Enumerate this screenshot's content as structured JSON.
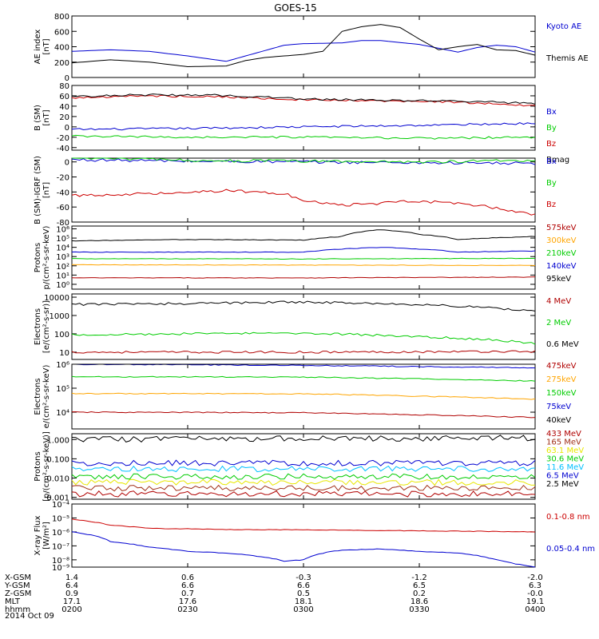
{
  "title": "GOES-15",
  "date_label": "2014 Oct 09",
  "colors": {
    "black": "#000000",
    "blue": "#0000d0",
    "red": "#cc0000",
    "green": "#00cc00",
    "orange": "#ffa500",
    "cyan": "#00c0ff",
    "yellow": "#e8e800",
    "brown": "#a03018",
    "darkred": "#b00000",
    "magenta": "#d000d0"
  },
  "bottom_axis": {
    "rows": [
      {
        "label": "X-GSM",
        "values": [
          "1.4",
          "0.6",
          "-0.3",
          "-1.2",
          "-2.0"
        ]
      },
      {
        "label": "Y-GSM",
        "values": [
          "6.4",
          "6.6",
          "6.6",
          "6.5",
          "6.3"
        ]
      },
      {
        "label": "Z-GSM",
        "values": [
          "0.9",
          "0.7",
          "0.5",
          "0.2",
          "-0.0"
        ]
      },
      {
        "label": "MLT",
        "values": [
          "17.1",
          "17.6",
          "18.1",
          "18.6",
          "19.1"
        ]
      },
      {
        "label": "hhmm",
        "values": [
          "0200",
          "0230",
          "0300",
          "0330",
          "0400"
        ]
      }
    ]
  },
  "chart_data": [
    {
      "type": "line",
      "panel": "ae",
      "ylabel": [
        "AE index",
        "[nT]"
      ],
      "scale": "linear",
      "ylim": [
        0,
        800
      ],
      "yticks": [
        "0",
        "200",
        "400",
        "600",
        "800"
      ],
      "yticks_v": [
        0,
        200,
        400,
        600,
        800
      ],
      "xlim": [
        0,
        120
      ],
      "series": [
        {
          "name": "Kyoto AE",
          "color": "blue",
          "x": [
            0,
            10,
            20,
            30,
            40,
            50,
            55,
            60,
            70,
            75,
            80,
            90,
            100,
            105,
            110,
            115,
            120
          ],
          "y": [
            340,
            360,
            340,
            280,
            210,
            350,
            420,
            440,
            450,
            480,
            480,
            430,
            330,
            390,
            420,
            400,
            330
          ]
        },
        {
          "name": "Themis AE",
          "color": "black",
          "x": [
            0,
            10,
            20,
            30,
            40,
            45,
            50,
            60,
            65,
            70,
            75,
            80,
            85,
            90,
            95,
            100,
            105,
            110,
            115,
            120
          ],
          "y": [
            190,
            230,
            200,
            140,
            150,
            220,
            260,
            300,
            340,
            600,
            660,
            690,
            650,
            500,
            360,
            400,
            430,
            360,
            350,
            290
          ]
        }
      ]
    },
    {
      "type": "line",
      "panel": "bsm",
      "ylabel": [
        "B (SM)",
        "[nT]"
      ],
      "scale": "linear",
      "ylim": [
        -45,
        80
      ],
      "yticks": [
        "-40",
        "-20",
        "0",
        "20",
        "40",
        "60",
        "80"
      ],
      "yticks_v": [
        -40,
        -20,
        0,
        20,
        40,
        60,
        80
      ],
      "xlim": [
        0,
        120
      ],
      "noise": 2,
      "series": [
        {
          "name": "Bx",
          "color": "blue",
          "x": [
            0,
            30,
            60,
            90,
            120
          ],
          "y": [
            -5,
            -3,
            0,
            3,
            7
          ]
        },
        {
          "name": "By",
          "color": "green",
          "x": [
            0,
            30,
            60,
            90,
            120
          ],
          "y": [
            -18,
            -20,
            -20,
            -22,
            -20
          ]
        },
        {
          "name": "Bz",
          "color": "red",
          "x": [
            0,
            20,
            40,
            60,
            80,
            100,
            120
          ],
          "y": [
            56,
            60,
            58,
            52,
            50,
            48,
            40
          ]
        },
        {
          "name": "Bmag",
          "color": "black",
          "x": [
            0,
            20,
            40,
            60,
            80,
            100,
            120
          ],
          "y": [
            59,
            62,
            61,
            54,
            51,
            50,
            45
          ]
        }
      ]
    },
    {
      "type": "line",
      "panel": "bigrf",
      "ylabel": [
        "B (SM)-IGRF (SM)",
        "[nT]"
      ],
      "scale": "linear",
      "ylim": [
        -80,
        5
      ],
      "yticks": [
        "-80",
        "-60",
        "-40",
        "-20",
        "0"
      ],
      "yticks_v": [
        -80,
        -60,
        -40,
        -20,
        0
      ],
      "xlim": [
        0,
        120
      ],
      "noise": 2,
      "series": [
        {
          "name": "Bx",
          "color": "blue",
          "x": [
            0,
            30,
            60,
            90,
            120
          ],
          "y": [
            3,
            1,
            0,
            -1,
            -2
          ]
        },
        {
          "name": "By",
          "color": "green",
          "x": [
            0,
            30,
            60,
            90,
            120
          ],
          "y": [
            6,
            2,
            1,
            0,
            2
          ]
        },
        {
          "name": "Bz",
          "color": "red",
          "x": [
            0,
            20,
            40,
            55,
            60,
            70,
            90,
            105,
            120
          ],
          "y": [
            -45,
            -42,
            -38,
            -42,
            -52,
            -58,
            -52,
            -58,
            -70
          ]
        }
      ]
    },
    {
      "type": "line",
      "panel": "protons_low",
      "ylabel": [
        "Protons",
        "p/(cm²-s-sr-keV)"
      ],
      "scale": "log",
      "ylim": [
        0.3,
        2000000
      ],
      "yticks": [
        "10⁰",
        "10¹",
        "10²",
        "10³",
        "10⁴",
        "10⁵",
        "10⁶"
      ],
      "yticks_v": [
        1,
        10,
        100,
        1000,
        10000,
        100000,
        1000000
      ],
      "xlim": [
        0,
        120
      ],
      "noise": 0.03,
      "series": [
        {
          "name": "575keV",
          "color": "darkred",
          "x": [
            0,
            60,
            120
          ],
          "y": [
            5,
            5,
            6
          ]
        },
        {
          "name": "300keV",
          "color": "orange",
          "x": [
            0,
            60,
            120
          ],
          "y": [
            130,
            120,
            110
          ]
        },
        {
          "name": "210keV",
          "color": "green",
          "x": [
            0,
            60,
            120
          ],
          "y": [
            600,
            550,
            650
          ]
        },
        {
          "name": "140keV",
          "color": "blue",
          "x": [
            0,
            60,
            80,
            100,
            120
          ],
          "y": [
            3000,
            3000,
            10000,
            3000,
            4000
          ]
        },
        {
          "name": "95keV",
          "color": "black",
          "x": [
            0,
            30,
            60,
            70,
            80,
            90,
            100,
            120
          ],
          "y": [
            50000,
            70000,
            60000,
            150000,
            800000,
            250000,
            70000,
            150000
          ]
        }
      ]
    },
    {
      "type": "line",
      "panel": "electrons_high",
      "ylabel": [
        "Electrons",
        "[e/(cm²-s-sr)]"
      ],
      "scale": "log",
      "ylim": [
        4,
        15000
      ],
      "yticks": [
        "10",
        "100",
        "1000",
        "10000"
      ],
      "yticks_v": [
        10,
        100,
        1000,
        10000
      ],
      "xlim": [
        0,
        120
      ],
      "noise": 0.06,
      "series": [
        {
          "name": "4 MeV",
          "color": "darkred",
          "x": [
            0,
            60,
            120
          ],
          "y": [
            10,
            10,
            11
          ]
        },
        {
          "name": "2 MeV",
          "color": "green",
          "x": [
            0,
            30,
            60,
            90,
            110,
            120
          ],
          "y": [
            90,
            100,
            110,
            70,
            45,
            30
          ]
        },
        {
          "name": "0.6 MeV",
          "color": "black",
          "x": [
            0,
            30,
            60,
            90,
            110,
            120
          ],
          "y": [
            4000,
            4500,
            5500,
            4000,
            2500,
            1800
          ]
        }
      ]
    },
    {
      "type": "line",
      "panel": "electrons_low",
      "ylabel": [
        "Electrons",
        "e/(cm²-s-sr-keV)"
      ],
      "scale": "log",
      "ylim": [
        2000,
        1000000
      ],
      "yticks": [
        "10⁴",
        "10⁵",
        "10⁶"
      ],
      "yticks_v": [
        10000,
        100000,
        1000000
      ],
      "xlim": [
        0,
        120
      ],
      "noise": 0.02,
      "series": [
        {
          "name": "475keV",
          "color": "darkred",
          "x": [
            0,
            60,
            120
          ],
          "y": [
            10000,
            9500,
            6000
          ]
        },
        {
          "name": "275keV",
          "color": "orange",
          "x": [
            0,
            60,
            120
          ],
          "y": [
            60000,
            58000,
            35000
          ]
        },
        {
          "name": "150keV",
          "color": "green",
          "x": [
            0,
            60,
            120
          ],
          "y": [
            300000,
            290000,
            200000
          ]
        },
        {
          "name": "75keV",
          "color": "blue",
          "x": [
            0,
            60,
            120
          ],
          "y": [
            1000000,
            900000,
            700000
          ]
        },
        {
          "name": "40keV",
          "color": "black",
          "x": [
            0,
            60,
            120
          ],
          "y": [
            1500000,
            1400000,
            1200000
          ]
        }
      ]
    },
    {
      "type": "line",
      "panel": "protons_high",
      "ylabel": [
        "Protons",
        "[p/(cm²-s-sr-keV)]"
      ],
      "scale": "log",
      "ylim": [
        0.0008,
        2
      ],
      "yticks": [
        "0.001",
        "0.010",
        "0.100",
        "1.000"
      ],
      "yticks_v": [
        0.001,
        0.01,
        0.1,
        1
      ],
      "xlim": [
        0,
        120
      ],
      "noise": 0.15,
      "series": [
        {
          "name": "433 MeV",
          "color": "darkred",
          "x": [
            0,
            120
          ],
          "y": [
            0.0015,
            0.0015
          ]
        },
        {
          "name": "165 MeV",
          "color": "brown",
          "x": [
            0,
            120
          ],
          "y": [
            0.003,
            0.003
          ]
        },
        {
          "name": "63.1 MeV",
          "color": "yellow",
          "x": [
            0,
            120
          ],
          "y": [
            0.006,
            0.006
          ]
        },
        {
          "name": "30.6 MeV",
          "color": "green",
          "x": [
            0,
            120
          ],
          "y": [
            0.012,
            0.012
          ]
        },
        {
          "name": "11.6 MeV",
          "color": "cyan",
          "x": [
            0,
            120
          ],
          "y": [
            0.03,
            0.03
          ]
        },
        {
          "name": "6.5 MeV",
          "color": "blue",
          "x": [
            0,
            120
          ],
          "y": [
            0.06,
            0.06
          ]
        },
        {
          "name": "2.5 MeV",
          "color": "black",
          "x": [
            0,
            120
          ],
          "y": [
            1.0,
            1.2
          ]
        }
      ]
    },
    {
      "type": "line",
      "panel": "xray",
      "ylabel": [
        "X-ray Flux",
        "[W/m²]"
      ],
      "scale": "log",
      "ylim": [
        3e-09,
        0.0001
      ],
      "yticks": [
        "10⁻⁹",
        "10⁻⁸",
        "10⁻⁷",
        "10⁻⁶",
        "10⁻⁵",
        "10⁻⁴"
      ],
      "yticks_v": [
        1e-09,
        1e-08,
        1e-07,
        1e-06,
        1e-05,
        0.0001
      ],
      "xlim": [
        0,
        120
      ],
      "noise": 0.02,
      "series": [
        {
          "name": "0.1-0.8 nm",
          "color": "red",
          "x": [
            0,
            10,
            20,
            40,
            60,
            90,
            120
          ],
          "y": [
            8e-06,
            3e-06,
            1.8e-06,
            1.5e-06,
            1.4e-06,
            1.2e-06,
            1e-06
          ]
        },
        {
          "name": "0.05-0.4 nm",
          "color": "blue",
          "x": [
            0,
            10,
            20,
            30,
            40,
            50,
            55,
            60,
            70,
            80,
            90,
            100,
            110,
            115,
            120
          ],
          "y": [
            1e-06,
            2e-07,
            8e-08,
            4e-08,
            3e-08,
            1.5e-08,
            8e-09,
            1e-08,
            5e-08,
            6e-08,
            4e-08,
            3e-08,
            1e-08,
            5e-09,
            3e-09
          ]
        }
      ]
    }
  ]
}
